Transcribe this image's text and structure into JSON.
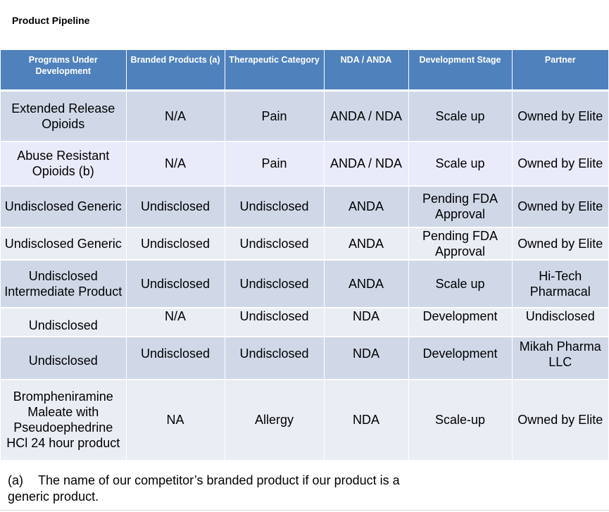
{
  "page": {
    "title": "Product Pipeline"
  },
  "table": {
    "headers": [
      "Programs Under Development",
      "Branded Products (a)",
      "Therapeutic Category",
      "NDA / ANDA",
      "Development Stage",
      "Partner"
    ],
    "rows": [
      [
        "Extended Release Opioids",
        "N/A",
        "Pain",
        "ANDA / NDA",
        "Scale up",
        "Owned by Elite"
      ],
      [
        "Abuse Resistant Opioids (b)",
        "N/A",
        "Pain",
        "ANDA / NDA",
        "Scale up",
        "Owned by Elite"
      ],
      [
        "Undisclosed Generic",
        "Undisclosed",
        "Undisclosed",
        "ANDA",
        "Pending FDA Approval",
        "Owned by Elite"
      ],
      [
        "Undisclosed Generic",
        "Undisclosed",
        "Undisclosed",
        "ANDA",
        "Pending FDA Approval",
        "Owned by Elite"
      ],
      [
        "Undisclosed Intermediate Product",
        "Undisclosed",
        "Undisclosed",
        "ANDA",
        "Scale up",
        "Hi-Tech Pharmacal"
      ],
      [
        "Undisclosed",
        "N/A",
        "Undisclosed",
        "NDA",
        "Development",
        "Undisclosed"
      ],
      [
        "Undisclosed",
        "Undisclosed",
        "Undisclosed",
        "NDA",
        "Development",
        "Mikah Pharma LLC"
      ],
      [
        "Brompheniramine Maleate with Pseudoephedrine HCl 24 hour product",
        "NA",
        "Allergy",
        "NDA",
        "Scale-up",
        "Owned by Elite"
      ]
    ]
  },
  "footnote": {
    "label": "(a)",
    "text": "The name of our competitor’s branded product if our product is a generic product."
  },
  "colors": {
    "header_bg": "#4f81bd",
    "row_dark": "#d0d8e8",
    "row_light": "#e9edf4"
  }
}
